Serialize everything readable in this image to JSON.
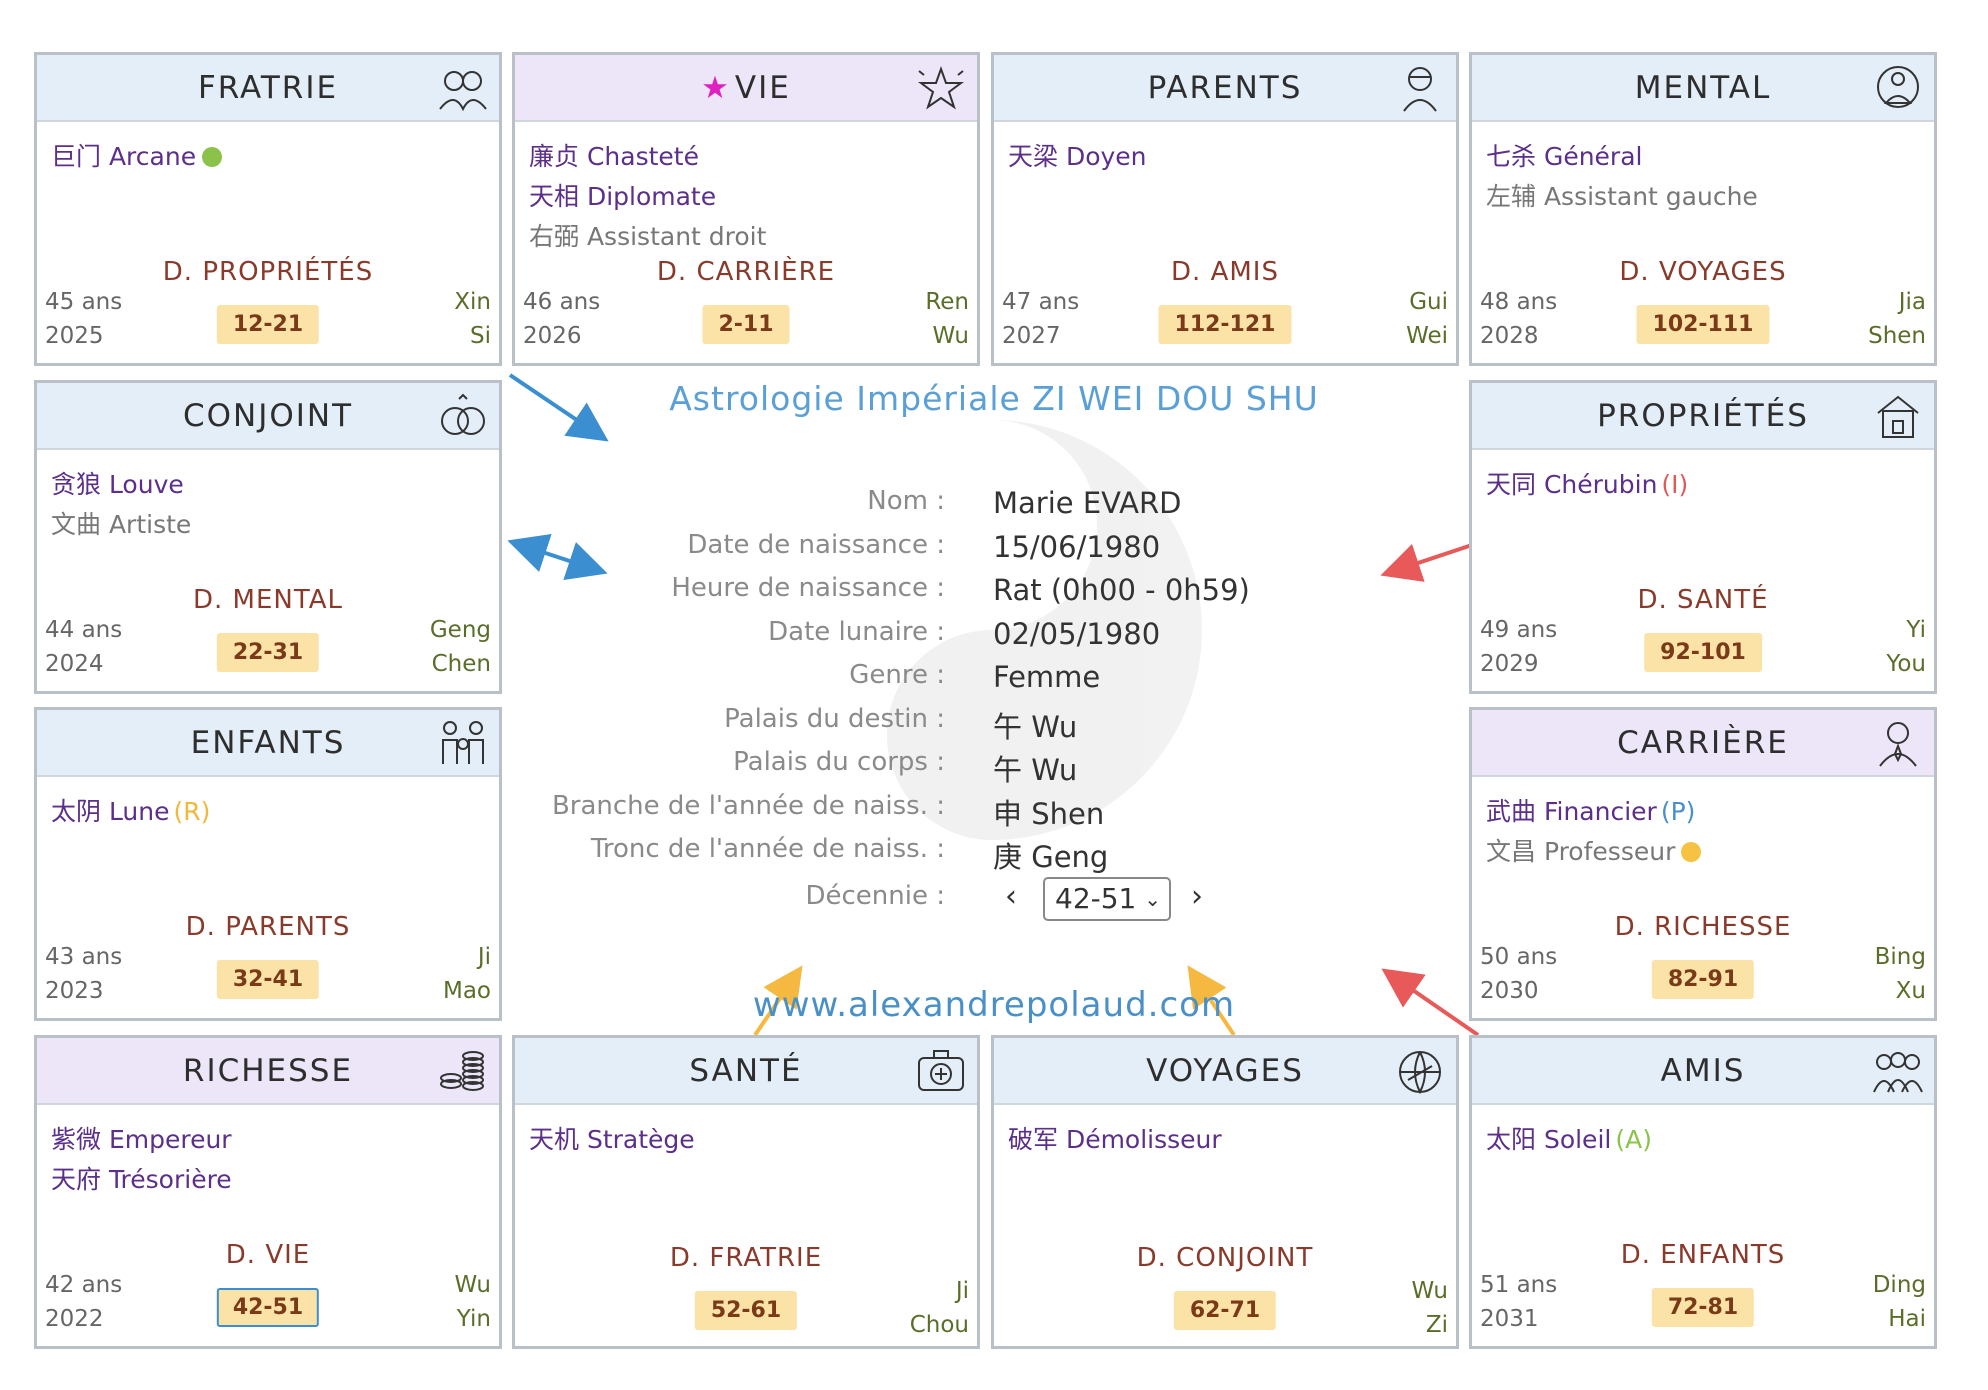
{
  "chart_data": {
    "type": "table",
    "title": "Astrologie Impériale ZI WEI DOU SHU",
    "website": "www.alexandrepolaud.com",
    "profile": [
      {
        "label": "Nom :",
        "value": "Marie EVARD"
      },
      {
        "label": "Date de naissance :",
        "value": "15/06/1980"
      },
      {
        "label": "Heure de naissance :",
        "value": "Rat (0h00 - 0h59)"
      },
      {
        "label": "Date lunaire :",
        "value": "02/05/1980"
      },
      {
        "label": "Genre :",
        "value": "Femme"
      },
      {
        "label": "Palais du destin :",
        "value": "午 Wu"
      },
      {
        "label": "Palais du corps :",
        "value": "午 Wu"
      },
      {
        "label": "Branche de l'année de naiss. :",
        "value": "申 Shen"
      },
      {
        "label": "Tronc de l'année de naiss. :",
        "value": "庚 Geng"
      }
    ],
    "decade": {
      "label": "Décennie :",
      "selected": "42-51",
      "prev": "‹",
      "next": "›"
    },
    "palaces": [
      {
        "name": "FRATRIE",
        "icon": "siblings-icon",
        "header": "blue",
        "stars": [
          {
            "text": "巨门 Arcane",
            "minor": false,
            "dot": "#8bc34a"
          }
        ],
        "dpalace": "D. PROPRIÉTÉS",
        "age": "45 ans",
        "year": "2025",
        "range": "12-21",
        "stem": "Xin",
        "branch": "Si"
      },
      {
        "name": "VIE",
        "icon": "star-outline-icon",
        "header": "purple",
        "marker": "★",
        "stars": [
          {
            "text": "廉贞 Chasteté",
            "minor": false
          },
          {
            "text": "天相 Diplomate",
            "minor": false
          },
          {
            "text": "右弼 Assistant droit",
            "minor": true
          }
        ],
        "dpalace": "D. CARRIÈRE",
        "age": "46 ans",
        "year": "2026",
        "range": "2-11",
        "stem": "Ren",
        "branch": "Wu"
      },
      {
        "name": "PARENTS",
        "icon": "elder-icon",
        "header": "blue",
        "stars": [
          {
            "text": "天梁 Doyen",
            "minor": false
          }
        ],
        "dpalace": "D. AMIS",
        "age": "47 ans",
        "year": "2027",
        "range": "112-121",
        "stem": "Gui",
        "branch": "Wei"
      },
      {
        "name": "MENTAL",
        "icon": "meditation-icon",
        "header": "blue",
        "stars": [
          {
            "text": "七杀 Général",
            "minor": false
          },
          {
            "text": "左辅 Assistant gauche",
            "minor": true
          }
        ],
        "dpalace": "D. VOYAGES",
        "age": "48 ans",
        "year": "2028",
        "range": "102-111",
        "stem": "Jia",
        "branch": "Shen"
      },
      {
        "name": "CONJOINT",
        "icon": "rings-icon",
        "header": "blue",
        "stars": [
          {
            "text": "贪狼 Louve",
            "minor": false
          },
          {
            "text": "文曲 Artiste",
            "minor": true
          }
        ],
        "dpalace": "D. MENTAL",
        "age": "44 ans",
        "year": "2024",
        "range": "22-31",
        "stem": "Geng",
        "branch": "Chen"
      },
      {
        "name": "PROPRIÉTÉS",
        "icon": "house-icon",
        "header": "blue",
        "stars": [
          {
            "text": "天同 Chérubin",
            "minor": false,
            "mut": "(I)",
            "mutColor": "#e05a5a"
          }
        ],
        "dpalace": "D. SANTÉ",
        "age": "49 ans",
        "year": "2029",
        "range": "92-101",
        "stem": "Yi",
        "branch": "You"
      },
      {
        "name": "ENFANTS",
        "icon": "family-icon",
        "header": "blue",
        "stars": [
          {
            "text": "太阴 Lune",
            "minor": false,
            "mut": "(R)",
            "mutColor": "#f0b93a"
          }
        ],
        "dpalace": "D. PARENTS",
        "age": "43 ans",
        "year": "2023",
        "range": "32-41",
        "stem": "Ji",
        "branch": "Mao"
      },
      {
        "name": "CARRIÈRE",
        "icon": "businessman-icon",
        "header": "purple",
        "stars": [
          {
            "text": "武曲 Financier",
            "minor": false,
            "mut": "(P)",
            "mutColor": "#4a90c8"
          },
          {
            "text": "文昌 Professeur",
            "minor": true,
            "dot": "#f5c242"
          }
        ],
        "dpalace": "D. RICHESSE",
        "age": "50 ans",
        "year": "2030",
        "range": "82-91",
        "stem": "Bing",
        "branch": "Xu"
      },
      {
        "name": "RICHESSE",
        "icon": "coins-icon",
        "header": "purple",
        "stars": [
          {
            "text": "紫微 Empereur",
            "minor": false
          },
          {
            "text": "天府 Trésorière",
            "minor": false
          }
        ],
        "dpalace": "D. VIE",
        "age": "42 ans",
        "year": "2022",
        "range": "42-51",
        "stem": "Wu",
        "branch": "Yin",
        "active": true
      },
      {
        "name": "SANTÉ",
        "icon": "medical-kit-icon",
        "header": "blue",
        "stars": [
          {
            "text": "天机 Stratège",
            "minor": false
          }
        ],
        "dpalace": "D. FRATRIE",
        "age": "",
        "year": "",
        "range": "52-61",
        "stem": "Ji",
        "branch": "Chou"
      },
      {
        "name": "VOYAGES",
        "icon": "globe-plane-icon",
        "header": "blue",
        "stars": [
          {
            "text": "破军 Démolisseur",
            "minor": false
          }
        ],
        "dpalace": "D. CONJOINT",
        "age": "",
        "year": "",
        "range": "62-71",
        "stem": "Wu",
        "branch": "Zi"
      },
      {
        "name": "AMIS",
        "icon": "friends-icon",
        "header": "blue",
        "stars": [
          {
            "text": "太阳 Soleil",
            "minor": false,
            "mut": "(A)",
            "mutColor": "#8bc34a"
          }
        ],
        "dpalace": "D. ENFANTS",
        "age": "51 ans",
        "year": "2031",
        "range": "72-81",
        "stem": "Ding",
        "branch": "Hai"
      }
    ]
  },
  "colors": {
    "header_blue": "#e4eef8",
    "header_purple": "#ece6f8",
    "range_bg": "#fbe3a8",
    "arrow_blue": "#3b8fd0",
    "arrow_red": "#e85a5a",
    "arrow_yellow": "#f5b942",
    "star_marker": "#e020c0"
  }
}
